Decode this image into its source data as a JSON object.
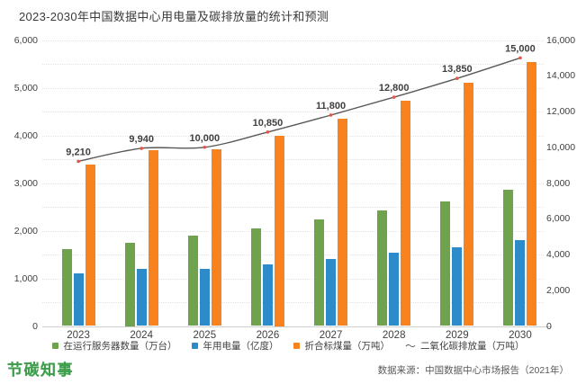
{
  "title": "2023-2030年中国数据中心用电量及碳排放量的统计和预测",
  "footer": {
    "logo": "节碳知事",
    "source": "数据来源：中国数据中心市场报告（2021年）"
  },
  "colors": {
    "servers": "#6FA24C",
    "electricity": "#2E8BC9",
    "coal": "#F8821E",
    "co2_line": "#595959",
    "co2_marker": "#E2574C",
    "axis_text": "#3f3f3f",
    "data_label": "#3f3f3f"
  },
  "chart_data": {
    "type": "bar",
    "subtype": "grouped-bars-with-line",
    "title": "2023-2030年中国数据中心用电量及碳排放量的统计和预测",
    "categories": [
      "2023",
      "2024",
      "2025",
      "2026",
      "2027",
      "2028",
      "2029",
      "2030"
    ],
    "series": [
      {
        "name": "在运行服务器数量（万台）",
        "kind": "bar",
        "axis": "left",
        "color_key": "servers",
        "values": [
          1620,
          1750,
          1900,
          2050,
          2230,
          2420,
          2610,
          2860
        ]
      },
      {
        "name": "年用电量（亿度）",
        "kind": "bar",
        "axis": "left",
        "color_key": "electricity",
        "values": [
          1100,
          1190,
          1200,
          1300,
          1410,
          1530,
          1660,
          1800
        ]
      },
      {
        "name": "折合标煤量（万吨）",
        "kind": "bar",
        "axis": "left",
        "color_key": "coal",
        "values": [
          3390,
          3680,
          3700,
          4000,
          4350,
          4730,
          5110,
          5540
        ]
      },
      {
        "name": "二氧化碳排放量（万吨）",
        "kind": "line",
        "axis": "right",
        "color_key": "co2_line",
        "values": [
          9210,
          9940,
          10000,
          10850,
          11800,
          12800,
          13850,
          15000
        ],
        "point_labels": [
          "9,210",
          "9,940",
          "10,000",
          "10,850",
          "11,800",
          "12,800",
          "13,850",
          "15,000"
        ]
      }
    ],
    "left_axis": {
      "min": 0,
      "max": 6000,
      "step": 1000,
      "ticks": [
        "0",
        "1,000",
        "2,000",
        "3,000",
        "4,000",
        "5,000",
        "6,000"
      ]
    },
    "right_axis": {
      "min": 0,
      "max": 16000,
      "step": 2000,
      "ticks": [
        "0",
        "2,000",
        "4,000",
        "6,000",
        "8,000",
        "10,000",
        "12,000",
        "14,000",
        "16,000"
      ]
    },
    "grid": "dotted horizontal, minor every 500 (left axis)",
    "legend_position": "bottom",
    "legend": [
      {
        "label": "在运行服务器数量（万台）",
        "symbol": "square",
        "color_key": "servers"
      },
      {
        "label": "年用电量（亿度）",
        "symbol": "square",
        "color_key": "electricity"
      },
      {
        "label": "折合标煤量（万吨）",
        "symbol": "square",
        "color_key": "coal"
      },
      {
        "label": "二氧化碳排放量（万吨）",
        "symbol": "line",
        "color_key": "co2_line"
      }
    ],
    "legend_line_symbol_char": "～"
  }
}
